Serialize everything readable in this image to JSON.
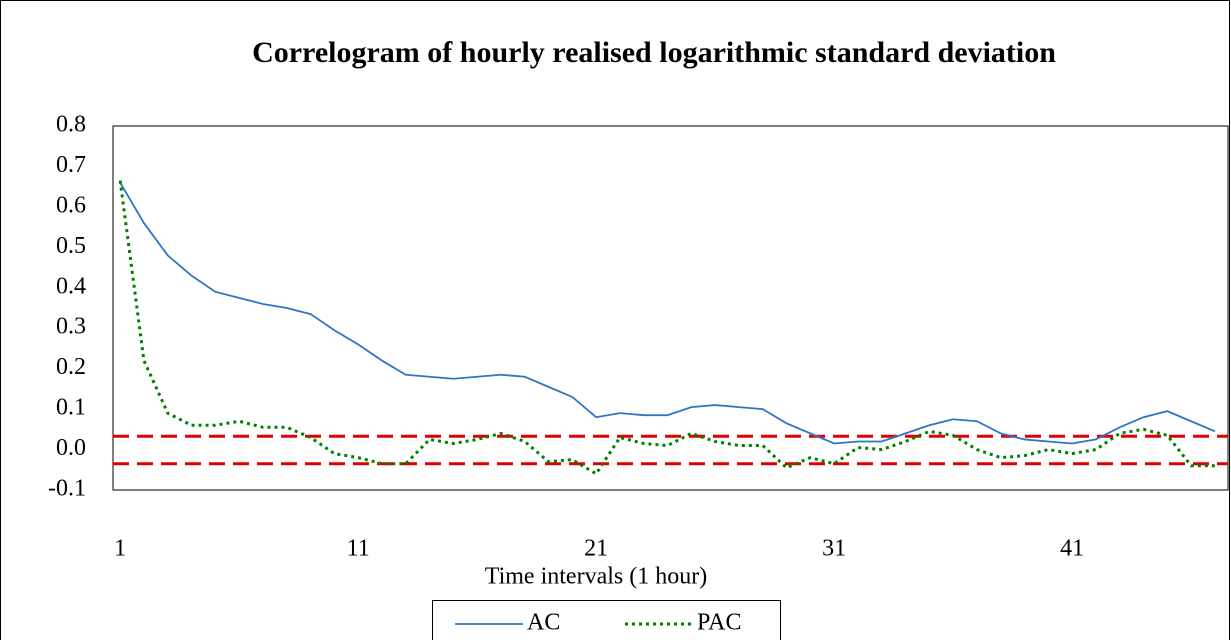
{
  "chart_data": {
    "type": "line",
    "title": "Correlogram of hourly realised logarithmic standard deviation",
    "x_label": "Time intervals (1 hour)",
    "x": [
      1,
      2,
      3,
      4,
      5,
      6,
      7,
      8,
      9,
      10,
      11,
      12,
      13,
      14,
      15,
      16,
      17,
      18,
      19,
      20,
      21,
      22,
      23,
      24,
      25,
      26,
      27,
      28,
      29,
      30,
      31,
      32,
      33,
      34,
      35,
      36,
      37,
      38,
      39,
      40,
      41,
      42,
      43,
      44,
      45,
      46,
      47
    ],
    "series": [
      {
        "name": "AC",
        "color": "#2e75c4",
        "style": "solid",
        "values": [
          0.66,
          0.56,
          0.48,
          0.43,
          0.39,
          0.375,
          0.36,
          0.35,
          0.335,
          0.295,
          0.26,
          0.22,
          0.185,
          0.18,
          0.175,
          0.18,
          0.185,
          0.18,
          0.155,
          0.13,
          0.08,
          0.09,
          0.085,
          0.085,
          0.105,
          0.11,
          0.105,
          0.1,
          0.065,
          0.04,
          0.015,
          0.02,
          0.02,
          0.04,
          0.06,
          0.075,
          0.07,
          0.04,
          0.025,
          0.02,
          0.015,
          0.025,
          0.055,
          0.08,
          0.095,
          0.07,
          0.045
        ]
      },
      {
        "name": "PAC",
        "color": "#008000",
        "style": "dotted",
        "values": [
          0.665,
          0.22,
          0.09,
          0.06,
          0.06,
          0.07,
          0.055,
          0.055,
          0.03,
          -0.01,
          -0.02,
          -0.035,
          -0.035,
          0.025,
          0.015,
          0.025,
          0.04,
          0.02,
          -0.03,
          -0.025,
          -0.06,
          0.03,
          0.015,
          0.01,
          0.04,
          0.02,
          0.01,
          0.01,
          -0.045,
          -0.02,
          -0.035,
          0.005,
          0.0,
          0.02,
          0.045,
          0.035,
          0.0,
          -0.02,
          -0.015,
          0.0,
          -0.01,
          0.0,
          0.04,
          0.05,
          0.035,
          -0.04,
          -0.04
        ]
      }
    ],
    "reference_lines": [
      0.033,
      -0.035
    ],
    "reference_color": "#e00000",
    "xlim": [
      0.7,
      47.55
    ],
    "xticks": [
      1,
      11,
      21,
      31,
      41
    ],
    "ylim": [
      -0.1,
      0.8
    ],
    "yticks": [
      -0.1,
      {
        "value": 0,
        "label": "0.0"
      },
      0.1,
      0.2,
      0.3,
      0.4,
      0.5,
      0.6,
      0.7,
      0.8
    ],
    "legend": "bottom"
  }
}
